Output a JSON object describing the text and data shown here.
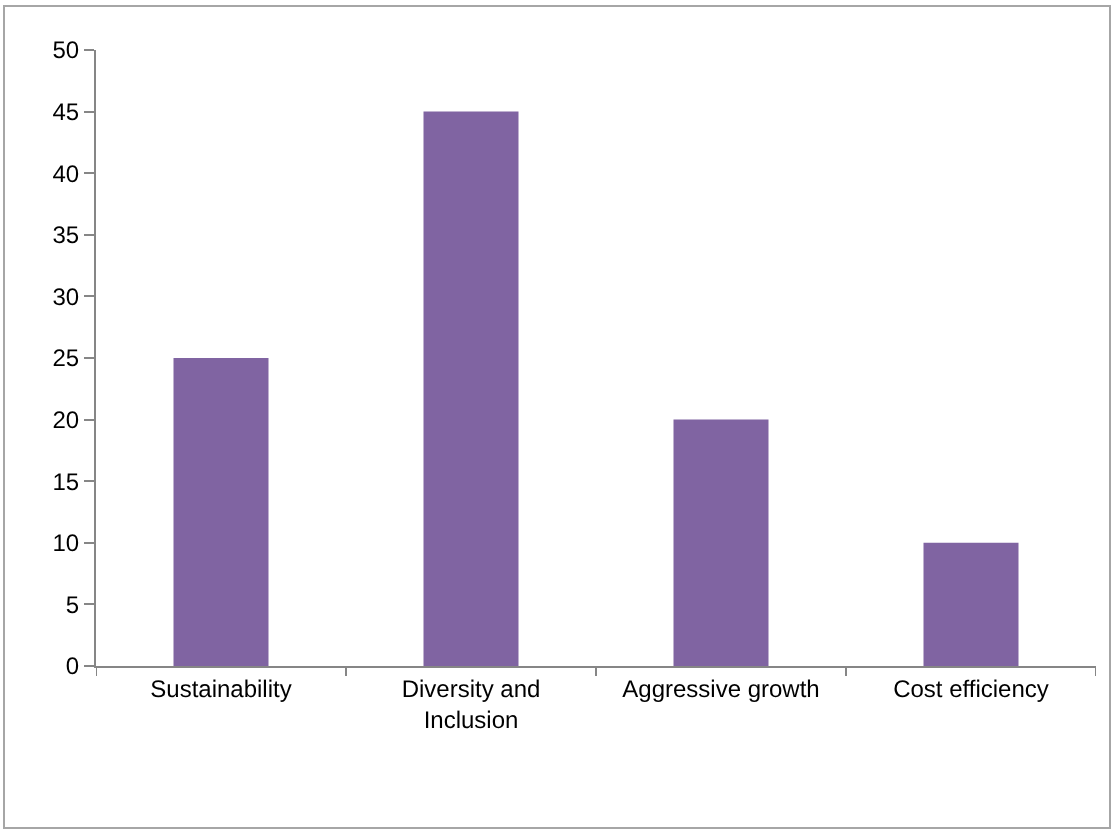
{
  "chart_data": {
    "type": "bar",
    "categories": [
      "Sustainability",
      "Diversity and Inclusion",
      "Aggressive growth",
      "Cost efficiency"
    ],
    "values": [
      25,
      45,
      20,
      10
    ],
    "color": "#8064a2",
    "ylim": [
      0,
      50
    ],
    "yticks": [
      0,
      5,
      10,
      15,
      20,
      25,
      30,
      35,
      40,
      45,
      50
    ],
    "grid": false
  }
}
